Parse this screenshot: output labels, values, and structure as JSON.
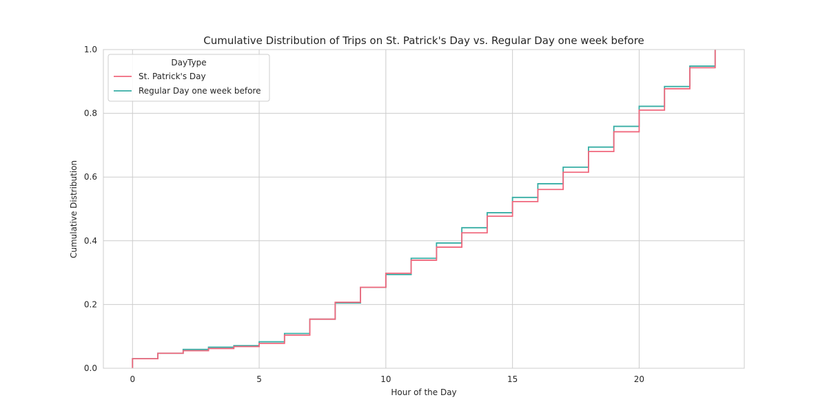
{
  "chart_data": {
    "type": "line",
    "step": "post",
    "title": "Cumulative Distribution of Trips on St. Patrick's Day vs. Regular Day one week before",
    "xlabel": "Hour of the Day",
    "ylabel": "Cumulative Distribution",
    "xlim": [
      -1.15,
      24.15
    ],
    "ylim": [
      0,
      1.0
    ],
    "xticks": [
      0,
      5,
      10,
      15,
      20
    ],
    "yticks": [
      0.0,
      0.2,
      0.4,
      0.6,
      0.8,
      1.0
    ],
    "xtick_labels": [
      "0",
      "5",
      "10",
      "15",
      "20"
    ],
    "ytick_labels": [
      "0.0",
      "0.2",
      "0.4",
      "0.6",
      "0.8",
      "1.0"
    ],
    "grid": true,
    "legend": {
      "title": "DayType",
      "placement": "top-left"
    },
    "x": [
      0,
      1,
      2,
      3,
      4,
      5,
      6,
      7,
      8,
      9,
      10,
      11,
      12,
      13,
      14,
      15,
      16,
      17,
      18,
      19,
      20,
      21,
      22,
      23
    ],
    "series": [
      {
        "name": "Regular Day one week before",
        "color": "#36ada4",
        "values": [
          0.03,
          0.047,
          0.059,
          0.066,
          0.071,
          0.083,
          0.109,
          0.154,
          0.205,
          0.254,
          0.294,
          0.345,
          0.393,
          0.441,
          0.488,
          0.536,
          0.579,
          0.631,
          0.694,
          0.759,
          0.822,
          0.884,
          0.948,
          1.0
        ]
      },
      {
        "name": "St. Patrick's Day",
        "color": "#f0677c",
        "values": [
          0.03,
          0.047,
          0.055,
          0.062,
          0.068,
          0.078,
          0.104,
          0.154,
          0.207,
          0.254,
          0.298,
          0.339,
          0.38,
          0.425,
          0.477,
          0.523,
          0.561,
          0.615,
          0.68,
          0.742,
          0.81,
          0.877,
          0.943,
          1.0
        ]
      }
    ]
  }
}
